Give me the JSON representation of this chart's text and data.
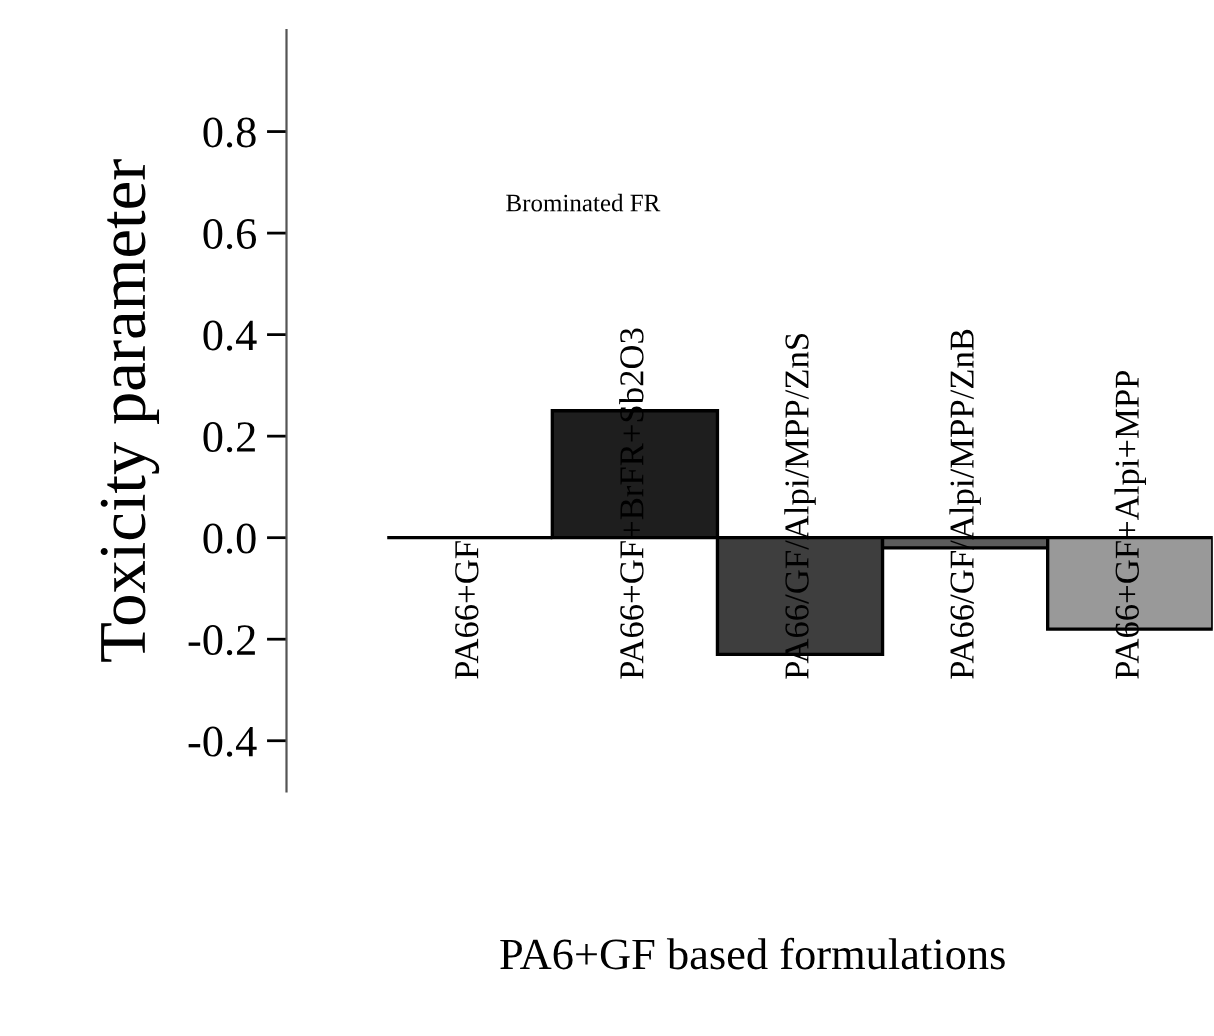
{
  "chart_data": {
    "type": "bar",
    "ylabel": "Toxicity parameter",
    "xlabel": "PA6+GF based formulations",
    "categories": [
      "PA66+GF",
      "PA66+GF+BrFR+Sb2O3",
      "PA66/GF/Alpi/MPP/ZnS",
      "PA66/GF/Alpi/MPP/ZnB",
      "PA66+GF+Alpi+MPP"
    ],
    "values": [
      0,
      0.25,
      -0.23,
      -0.02,
      -0.18
    ],
    "colors": [
      "#000000",
      "#1e1e1e",
      "#3e3e3e",
      "#5c5c5c",
      "#999999"
    ],
    "ylim": [
      -0.5,
      1.0
    ],
    "yticks": [
      -0.4,
      -0.2,
      {
        "value": 0.0,
        "label": "0.0"
      },
      0.2,
      0.4,
      0.6,
      0.8
    ],
    "annotations": [
      "Brominated FR"
    ],
    "grid": false,
    "legend": false
  }
}
